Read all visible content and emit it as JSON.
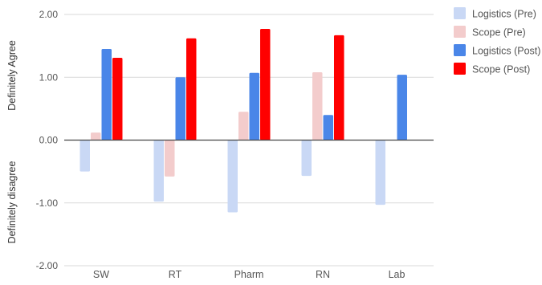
{
  "chart_data": {
    "type": "bar",
    "categories": [
      "SW",
      "RT",
      "Pharm",
      "RN",
      "Lab"
    ],
    "series": [
      {
        "name": "Logistics (Pre)",
        "color": "#c9d8f5",
        "values": [
          -0.5,
          -0.98,
          -1.15,
          -0.57,
          -1.03
        ]
      },
      {
        "name": "Scope (Pre)",
        "color": "#f3cccc",
        "values": [
          0.12,
          -0.58,
          0.45,
          1.08,
          null
        ]
      },
      {
        "name": "Logistics (Post)",
        "color": "#4a86e8",
        "values": [
          1.45,
          1.0,
          1.07,
          0.4,
          1.04
        ]
      },
      {
        "name": "Scope (Post)",
        "color": "#ff0000",
        "values": [
          1.31,
          1.62,
          1.77,
          1.67,
          null
        ]
      }
    ],
    "y_ticks": [
      "2.00",
      "1.00",
      "0.00",
      "-1.00",
      "-2.00"
    ],
    "ylim": [
      -2,
      2
    ],
    "ylabel_positive": "Definitely Agree",
    "ylabel_negative": "Definitely disagree",
    "grid": true,
    "legend_position": "right"
  }
}
